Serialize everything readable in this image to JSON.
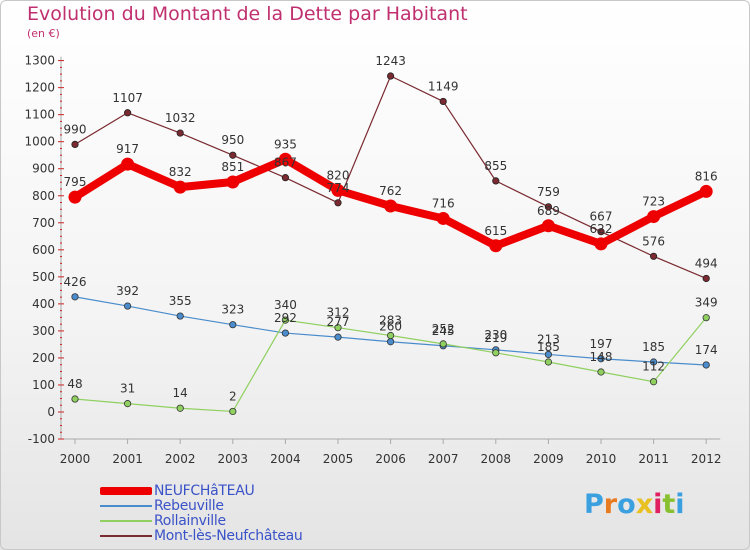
{
  "title": "Evolution du Montant de la Dette par Habitant",
  "subtitle": "(en €)",
  "logo_text": "Proxiti",
  "chart_data": {
    "type": "line",
    "title": "Evolution du Montant de la Dette par Habitant",
    "subtitle": "(en €)",
    "categories": [
      "2000",
      "2001",
      "2002",
      "2003",
      "2004",
      "2005",
      "2006",
      "2007",
      "2008",
      "2009",
      "2010",
      "2011",
      "2012"
    ],
    "ylim": [
      -100,
      1300
    ],
    "yticks": [
      -100,
      0,
      100,
      200,
      300,
      400,
      500,
      600,
      700,
      800,
      900,
      1000,
      1100,
      1200,
      1300
    ],
    "grid": false,
    "legend": "bottom-left",
    "series": [
      {
        "name": "NEUFCHâTEAU",
        "color": "#ee0000",
        "values": [
          795,
          917,
          832,
          851,
          935,
          820,
          762,
          716,
          615,
          689,
          622,
          723,
          816
        ]
      },
      {
        "name": "Rebeuville",
        "color": "#4a8ccc",
        "values": [
          426,
          392,
          355,
          323,
          292,
          277,
          260,
          245,
          230,
          213,
          197,
          185,
          174
        ]
      },
      {
        "name": "Rollainville",
        "color": "#90d060",
        "values": [
          48,
          31,
          14,
          2,
          340,
          312,
          283,
          252,
          219,
          185,
          148,
          112,
          349
        ]
      },
      {
        "name": "Mont-lès-Neufchâteau",
        "color": "#7a2a30",
        "values": [
          990,
          1107,
          1032,
          950,
          867,
          774,
          1243,
          1149,
          855,
          759,
          667,
          576,
          494
        ]
      }
    ]
  }
}
